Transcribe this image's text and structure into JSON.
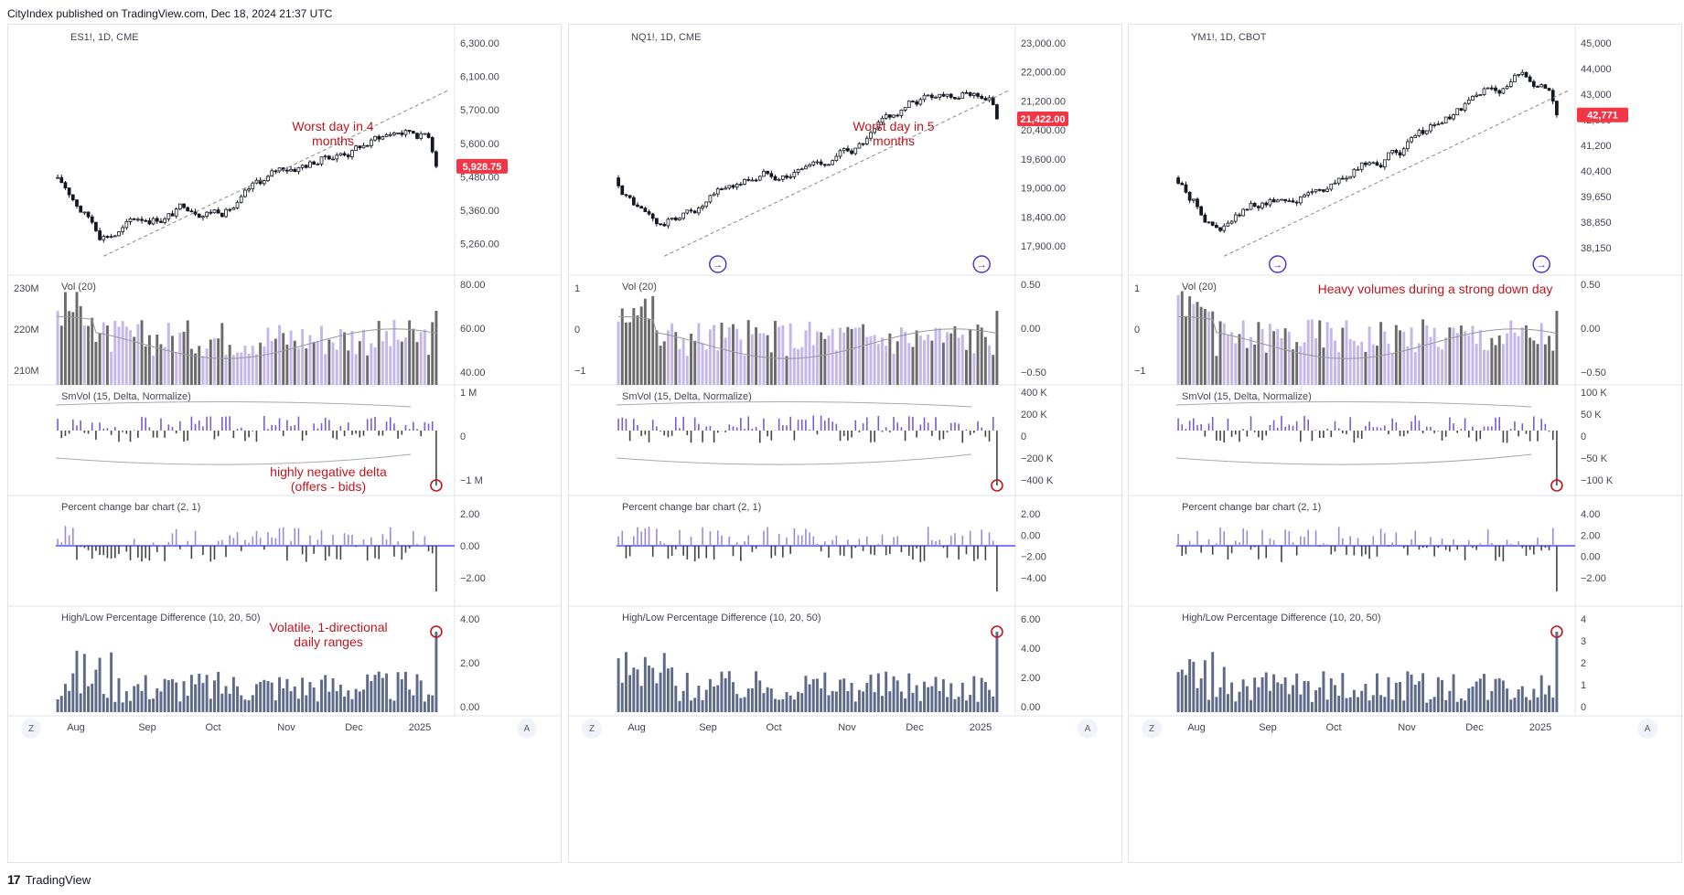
{
  "header": {
    "text": "CityIndex published on TradingView.com, Dec 18, 2024 21:37 UTC"
  },
  "footer": {
    "brand": "TradingView",
    "logo": "TV-logo"
  },
  "nav": {
    "zoom_left": "Z",
    "auto_right": "A"
  },
  "colors": {
    "up": "#9b8ad8",
    "down": "#555555",
    "price_badge": "#f23645",
    "annotation": "#c0151f",
    "zero_line": "#2a2aff",
    "hl_bar": "#5d6a8a"
  },
  "panels": [
    {
      "symbol_label": "ES1!, 1D, CME",
      "price_badge": "5,928.75",
      "price_axis": [
        "6,300.00",
        "6,100.00",
        "5,700.00",
        "5,600.00",
        "5,480.00",
        "5,360.00",
        "5,260.00"
      ],
      "price_range": [
        5200,
        6320
      ],
      "vol_axis_left": [
        "230M",
        "220M",
        "210M"
      ],
      "vol_axis_right": [
        "80.00",
        "60.00",
        "40.00"
      ],
      "smvol_axis": [
        "1 M",
        "0",
        "−1 M"
      ],
      "pct_axis": [
        "2.00",
        "0.00",
        "−2.00"
      ],
      "hl_axis": [
        "4.00",
        "2.00",
        "0.00"
      ],
      "months": [
        "Aug",
        "Sep",
        "Oct",
        "Nov",
        "Dec",
        "2025"
      ],
      "ann_price": [
        "Worst day in 4",
        "months"
      ],
      "ann_smvol": [
        "highly negative delta",
        "(offers - bids)"
      ],
      "ann_hl": [
        "Volatile, 1-directional",
        "daily ranges"
      ],
      "ann_vol": [],
      "scroll_icons": false
    },
    {
      "symbol_label": "NQ1!, 1D, CME",
      "price_badge": "21,422.00",
      "price_axis": [
        "23,000.00",
        "22,000.00",
        "21,200.00",
        "20,400.00",
        "19,600.00",
        "19,000.00",
        "18,400.00",
        "17,900.00"
      ],
      "price_range": [
        17600,
        23200
      ],
      "vol_axis_left": [
        "1",
        "0",
        "−1"
      ],
      "vol_axis_right": [
        "0.50",
        "0.00",
        "−0.50"
      ],
      "smvol_axis": [
        "400 K",
        "200 K",
        "0",
        "−200 K",
        "−400 K"
      ],
      "pct_axis": [
        "2.00",
        "0.00",
        "−2.00",
        "−4.00"
      ],
      "hl_axis": [
        "6.00",
        "4.00",
        "2.00",
        "0.00"
      ],
      "months": [
        "Aug",
        "Sep",
        "Oct",
        "Nov",
        "Dec",
        "2025"
      ],
      "ann_price": [
        "Worst day in 5",
        "months"
      ],
      "ann_smvol": [],
      "ann_hl": [],
      "ann_vol": [],
      "scroll_icons": true
    },
    {
      "symbol_label": "YM1!, 1D, CBOT",
      "price_badge": "42,771",
      "price_axis": [
        "45,000",
        "44,000",
        "43,000",
        "42,000",
        "41,200",
        "40,400",
        "39,650",
        "38,850",
        "38,150"
      ],
      "price_range": [
        37800,
        46100
      ],
      "vol_axis_left": [
        "1",
        "0",
        "−1"
      ],
      "vol_axis_right": [
        "0.50",
        "0.00",
        "−0.50"
      ],
      "smvol_axis": [
        "100 K",
        "50 K",
        "0",
        "−50 K",
        "−100 K"
      ],
      "pct_axis": [
        "4.00",
        "2.00",
        "0.00",
        "−2.00"
      ],
      "hl_axis": [
        "4",
        "3",
        "2",
        "1",
        "0"
      ],
      "months": [
        "Aug",
        "Sep",
        "Oct",
        "Nov",
        "Dec",
        "2025"
      ],
      "ann_price": [],
      "ann_smvol": [],
      "ann_hl": [],
      "ann_vol": [
        "Heavy volumes during a strong down day"
      ],
      "scroll_icons": true
    }
  ],
  "indicator_titles": {
    "vol": "Vol (20)",
    "smvol": "SmVol (15, Delta, Normalize)",
    "pct": "Percent change bar chart (2, 1)",
    "hl": "High/Low Percentage Difference (10, 20, 50)"
  },
  "chart_data": [
    {
      "type": "candlestick",
      "title": "ES1!, 1D, CME",
      "last_price": 5928.75,
      "ylim": [
        5260,
        6300
      ],
      "x_categories": [
        "Aug",
        "Sep",
        "Oct",
        "Nov",
        "Dec",
        "2025"
      ]
    },
    {
      "type": "candlestick",
      "title": "NQ1!, 1D, CME",
      "last_price": 21422,
      "ylim": [
        17900,
        23000
      ],
      "x_categories": [
        "Aug",
        "Sep",
        "Oct",
        "Nov",
        "Dec",
        "2025"
      ]
    },
    {
      "type": "candlestick",
      "title": "YM1!, 1D, CBOT",
      "last_price": 42771,
      "ylim": [
        38150,
        45000
      ],
      "x_categories": [
        "Aug",
        "Sep",
        "Oct",
        "Nov",
        "Dec",
        "2025"
      ]
    }
  ]
}
